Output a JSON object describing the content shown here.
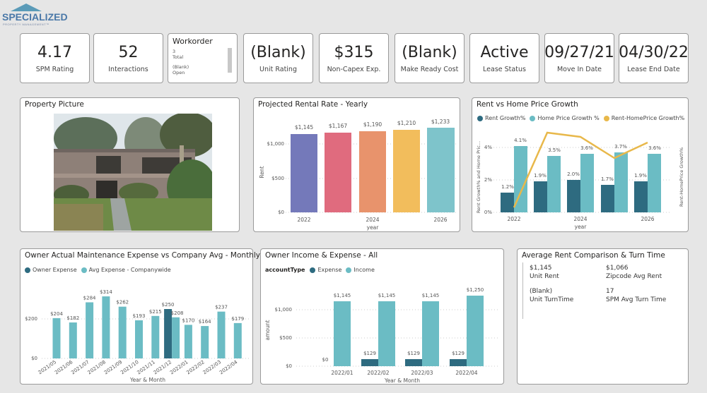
{
  "logo": {
    "name": "SPECIALIZED",
    "tagline": "PROPERTY MANAGEMENT™"
  },
  "kpis": [
    {
      "value": "4.17",
      "label": "SPM Rating"
    },
    {
      "value": "52",
      "label": "Interactions"
    },
    {
      "value": "(Blank)",
      "label": "Unit Rating"
    },
    {
      "value": "$315",
      "label": "Non-Capex Exp."
    },
    {
      "value": "(Blank)",
      "label": "Make Ready Cost"
    },
    {
      "value": "Active",
      "label": "Lease Status"
    },
    {
      "value": "09/27/21",
      "label": "Move In Date"
    },
    {
      "value": "04/30/22",
      "label": "Lease End Date"
    }
  ],
  "workorder": {
    "title": "Workorder",
    "rows": [
      {
        "value": "3",
        "label": "Total"
      },
      {
        "value": "(Blank)",
        "label": "Open"
      }
    ]
  },
  "property_picture": {
    "title": "Property Picture"
  },
  "rent_comparison": {
    "title": "Average Rent Comparison & Turn Time",
    "items": [
      {
        "value": "$1,145",
        "label": "Unit Rent"
      },
      {
        "value": "$1,066",
        "label": "Zipcode Avg Rent"
      },
      {
        "value": "(Blank)",
        "label": "Unit TurnTime"
      },
      {
        "value": "17",
        "label": "SPM Avg Turn Time"
      }
    ]
  },
  "colors": {
    "dark_teal": "#2e6b80",
    "light_teal": "#6bbcc4",
    "gold": "#e8b84a",
    "purple": "#7479ba",
    "pink": "#e06b7e",
    "orange": "#e8936c",
    "yellow": "#f2bd5c"
  },
  "chart_data": [
    {
      "id": "projected_rental",
      "type": "bar",
      "title": "Projected Rental Rate - Yearly",
      "categories": [
        "2022",
        "2023",
        "2024",
        "2025",
        "2026"
      ],
      "values": [
        1145,
        1167,
        1190,
        1210,
        1233
      ],
      "value_labels": [
        "$1,145",
        "$1,167",
        "$1,190",
        "$1,210",
        "$1,233"
      ],
      "x_tick_labels": [
        "2022",
        "",
        "2024",
        "",
        "2026"
      ],
      "xlabel": "year",
      "ylabel": "Rent",
      "y_ticks": [
        "$0",
        "$500",
        "$1,000"
      ],
      "ylim": [
        0,
        1300
      ]
    },
    {
      "id": "rent_vs_home",
      "type": "bar",
      "title": "Rent vs Home Price Growth",
      "categories": [
        "2022",
        "2023",
        "2024",
        "2025",
        "2026"
      ],
      "x_tick_labels": [
        "2022",
        "",
        "2024",
        "",
        "2026"
      ],
      "series": [
        {
          "name": "Rent Growth%",
          "values": [
            1.2,
            1.9,
            2.0,
            1.7,
            1.9
          ],
          "labels": [
            "1.2%",
            "1.9%",
            "2.0%",
            "1.7%",
            "1.9%"
          ]
        },
        {
          "name": "Home Price Growth %",
          "values": [
            4.1,
            3.5,
            3.6,
            3.7,
            3.6
          ],
          "labels": [
            "4.1%",
            "3.5%",
            "3.6%",
            "3.7%",
            "3.6%"
          ]
        },
        {
          "name": "Rent-HomePrice Growth%",
          "type": "line",
          "axis": "secondary",
          "values": [
            -2.9,
            -1.6,
            -1.6,
            -2.0,
            -1.7
          ]
        }
      ],
      "xlabel": "year",
      "ylabel": "Rent Growth% and Home Pric...",
      "y2label": "Rent-HomePrice Growth%",
      "y_ticks": [
        "0%",
        "2%",
        "4%"
      ],
      "ylim": [
        0,
        5
      ]
    },
    {
      "id": "maintenance",
      "type": "bar",
      "title": "Owner Actual Maintenance Expense vs Company Avg - Monthly",
      "categories": [
        "2021/05",
        "2021/06",
        "2021/07",
        "2021/08",
        "2021/09",
        "2021/10",
        "2021/11",
        "2021/12",
        "2022/01",
        "2022/02",
        "2022/03",
        "2022/04"
      ],
      "series": [
        {
          "name": "Owner Expense",
          "values": [
            null,
            null,
            null,
            null,
            null,
            null,
            null,
            250,
            null,
            null,
            null,
            null
          ]
        },
        {
          "name": "Avg Expense - Companywide",
          "values": [
            204,
            182,
            284,
            314,
            262,
            193,
            215,
            208,
            170,
            164,
            237,
            179
          ]
        }
      ],
      "xlabel": "Year & Month",
      "ylabel": "",
      "y_ticks": [
        "$0",
        "$200"
      ],
      "ylim": [
        0,
        340
      ]
    },
    {
      "id": "income_expense",
      "type": "bar",
      "title": "Owner Income & Expense - All",
      "legend_title": "accountType",
      "categories": [
        "2022/01",
        "2022/02",
        "2022/03",
        "2022/04"
      ],
      "series": [
        {
          "name": "Expense",
          "values": [
            0,
            129,
            129,
            129
          ],
          "labels": [
            "$0",
            "$129",
            "$129",
            "$129"
          ]
        },
        {
          "name": "Income",
          "values": [
            1145,
            1145,
            1145,
            1250
          ],
          "labels": [
            "$1,145",
            "$1,145",
            "$1,145",
            "$1,250"
          ]
        }
      ],
      "xlabel": "Year & Month",
      "ylabel": "amount",
      "y_ticks": [
        "$0",
        "$500",
        "$1,000"
      ],
      "ylim": [
        0,
        1300
      ]
    }
  ]
}
